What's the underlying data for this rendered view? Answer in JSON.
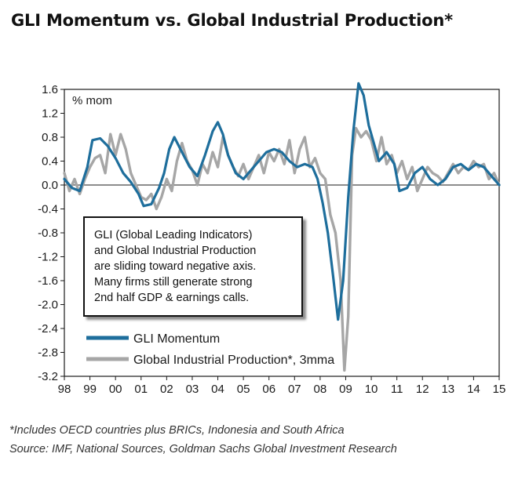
{
  "title": "GLI Momentum vs. Global Industrial Production*",
  "callout_lines": [
    "GLI (Global Leading Indicators)",
    "and Global Industrial Production",
    "are sliding toward negative axis.",
    "Many firms still generate strong",
    "2nd half GDP & earnings calls."
  ],
  "footnotes": [
    "*Includes OECD countries plus BRICs, Indonesia and South Africa",
    "Source: IMF, National Sources, Goldman Sachs Global Investment Research"
  ],
  "colors": {
    "gli": "#1e6e9c",
    "ip": "#a6a6a6"
  },
  "chart_data": {
    "type": "line",
    "ylabel": "% mom",
    "ylim": [
      -3.2,
      1.6
    ],
    "yticks": [
      1.6,
      1.2,
      0.8,
      0.4,
      0.0,
      -0.4,
      -0.8,
      -1.2,
      -1.6,
      -2.0,
      -2.4,
      -2.8,
      -3.2
    ],
    "ytick_labels": [
      "1.6",
      "1.2",
      "0.8",
      "0.4",
      "0.0",
      "-0.4",
      "-0.8",
      "-1.2",
      "-1.6",
      "-2.0",
      "-2.4",
      "-2.8",
      "-3.2"
    ],
    "xlim": [
      1998,
      2015
    ],
    "xticks": [
      1998,
      1999,
      2000,
      2001,
      2002,
      2003,
      2004,
      2005,
      2006,
      2007,
      2008,
      2009,
      2010,
      2011,
      2012,
      2013,
      2014,
      2015
    ],
    "xtick_labels": [
      "98",
      "99",
      "00",
      "01",
      "02",
      "03",
      "04",
      "05",
      "06",
      "07",
      "08",
      "09",
      "10",
      "11",
      "12",
      "13",
      "14",
      "15"
    ],
    "grid": false,
    "legend_position": "bottom-left",
    "series": [
      {
        "name": "GLI Momentum",
        "x": [
          1998.0,
          1998.3,
          1998.6,
          1998.9,
          1999.1,
          1999.4,
          1999.7,
          2000.0,
          2000.3,
          2000.6,
          2000.9,
          2001.1,
          2001.4,
          2001.7,
          2001.9,
          2002.1,
          2002.3,
          2002.6,
          2002.9,
          2003.2,
          2003.5,
          2003.8,
          2004.0,
          2004.2,
          2004.4,
          2004.7,
          2005.0,
          2005.3,
          2005.6,
          2005.9,
          2006.2,
          2006.5,
          2006.8,
          2007.1,
          2007.4,
          2007.7,
          2007.9,
          2008.1,
          2008.3,
          2008.5,
          2008.7,
          2008.9,
          2009.1,
          2009.3,
          2009.5,
          2009.7,
          2009.9,
          2010.1,
          2010.3,
          2010.6,
          2010.9,
          2011.1,
          2011.4,
          2011.7,
          2012.0,
          2012.3,
          2012.6,
          2012.9,
          2013.2,
          2013.5,
          2013.8,
          2014.1,
          2014.4,
          2014.7,
          2015.0
        ],
        "y": [
          0.1,
          -0.05,
          -0.1,
          0.3,
          0.75,
          0.78,
          0.65,
          0.45,
          0.2,
          0.05,
          -0.15,
          -0.35,
          -0.32,
          -0.05,
          0.2,
          0.6,
          0.8,
          0.55,
          0.3,
          0.15,
          0.5,
          0.9,
          1.05,
          0.85,
          0.5,
          0.2,
          0.1,
          0.25,
          0.4,
          0.55,
          0.6,
          0.55,
          0.4,
          0.3,
          0.35,
          0.3,
          0.1,
          -0.3,
          -0.8,
          -1.5,
          -2.25,
          -1.6,
          -0.2,
          0.9,
          1.7,
          1.5,
          1.0,
          0.7,
          0.4,
          0.55,
          0.35,
          -0.1,
          -0.05,
          0.2,
          0.3,
          0.1,
          0.0,
          0.1,
          0.3,
          0.35,
          0.25,
          0.35,
          0.3,
          0.15,
          0.0
        ]
      },
      {
        "name": "Global Industrial Production*, 3mma",
        "x": [
          1998.0,
          1998.2,
          1998.4,
          1998.6,
          1998.8,
          1999.0,
          1999.2,
          1999.4,
          1999.6,
          1999.8,
          2000.0,
          2000.2,
          2000.4,
          2000.6,
          2000.8,
          2001.0,
          2001.2,
          2001.4,
          2001.6,
          2001.8,
          2002.0,
          2002.2,
          2002.4,
          2002.6,
          2002.8,
          2003.0,
          2003.2,
          2003.4,
          2003.6,
          2003.8,
          2004.0,
          2004.2,
          2004.4,
          2004.6,
          2004.8,
          2005.0,
          2005.2,
          2005.4,
          2005.6,
          2005.8,
          2006.0,
          2006.2,
          2006.4,
          2006.6,
          2006.8,
          2007.0,
          2007.2,
          2007.4,
          2007.6,
          2007.8,
          2008.0,
          2008.2,
          2008.4,
          2008.6,
          2008.8,
          2008.95,
          2009.1,
          2009.25,
          2009.4,
          2009.6,
          2009.8,
          2010.0,
          2010.2,
          2010.4,
          2010.6,
          2010.8,
          2011.0,
          2011.2,
          2011.4,
          2011.6,
          2011.8,
          2012.0,
          2012.2,
          2012.4,
          2012.6,
          2012.8,
          2013.0,
          2013.2,
          2013.4,
          2013.6,
          2013.8,
          2014.0,
          2014.2,
          2014.4,
          2014.6,
          2014.8,
          2015.0
        ],
        "y": [
          0.2,
          -0.1,
          0.1,
          -0.15,
          0.1,
          0.3,
          0.45,
          0.5,
          0.2,
          0.85,
          0.5,
          0.85,
          0.6,
          0.2,
          0.0,
          -0.2,
          -0.25,
          -0.15,
          -0.4,
          -0.2,
          0.1,
          -0.1,
          0.4,
          0.7,
          0.4,
          0.25,
          0.0,
          0.35,
          0.2,
          0.55,
          0.3,
          0.8,
          0.5,
          0.3,
          0.15,
          0.35,
          0.1,
          0.3,
          0.5,
          0.2,
          0.55,
          0.4,
          0.6,
          0.35,
          0.75,
          0.2,
          0.6,
          0.8,
          0.3,
          0.45,
          0.2,
          0.1,
          -0.5,
          -0.8,
          -1.6,
          -3.1,
          -2.2,
          0.5,
          0.95,
          0.8,
          0.9,
          0.75,
          0.4,
          0.8,
          0.35,
          0.5,
          0.2,
          0.4,
          0.1,
          0.3,
          -0.1,
          0.1,
          0.3,
          0.2,
          0.15,
          0.05,
          0.2,
          0.35,
          0.2,
          0.3,
          0.25,
          0.4,
          0.3,
          0.35,
          0.1,
          0.2,
          0.0
        ]
      }
    ]
  }
}
